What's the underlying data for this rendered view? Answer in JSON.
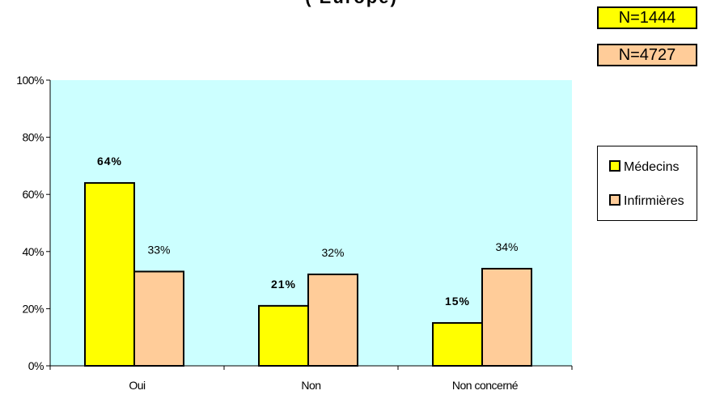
{
  "chart_data": {
    "type": "bar",
    "title": "( Europe)",
    "categories": [
      "Oui",
      "Non",
      "Non concerné"
    ],
    "series": [
      {
        "name": "Médecins",
        "color": "#ffff00",
        "values": [
          64,
          21,
          15
        ],
        "value_labels": [
          "64%",
          "21%",
          "15%"
        ],
        "label_bold": true,
        "sample": "N=1444"
      },
      {
        "name": "Infirmières",
        "color": "#ffcc99",
        "values": [
          33,
          32,
          34
        ],
        "value_labels": [
          "33%",
          "32%",
          "34%"
        ],
        "label_bold": false,
        "sample": "N=4727"
      }
    ],
    "ylim": [
      0,
      100
    ],
    "yticks": [
      0,
      20,
      40,
      60,
      80,
      100
    ],
    "ytick_labels": [
      "0%",
      "20%",
      "40%",
      "60%",
      "80%",
      "100%"
    ],
    "plot_background": "#ccffff",
    "grid": false,
    "legend": "right"
  }
}
